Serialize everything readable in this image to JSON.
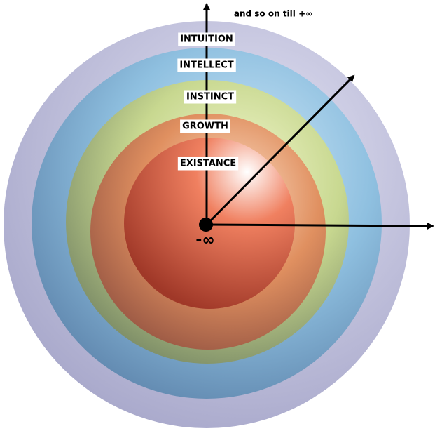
{
  "top_note": "and so on till +∞",
  "levels": [
    "INTUITION",
    "INTELLECT",
    "INSTINCT",
    "GROWTH",
    "EXISTANCE"
  ],
  "center_label": "-∞"
}
